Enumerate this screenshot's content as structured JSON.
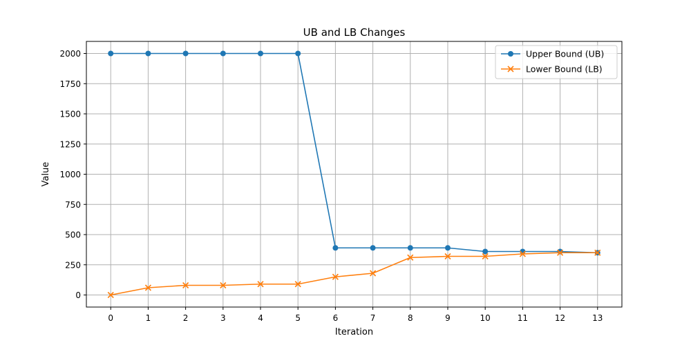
{
  "chart_data": {
    "type": "line",
    "title": "UB and LB Changes",
    "xlabel": "Iteration",
    "ylabel": "Value",
    "x": [
      0,
      1,
      2,
      3,
      4,
      5,
      6,
      7,
      8,
      9,
      10,
      11,
      12,
      13
    ],
    "xlim": [
      -0.65,
      13.65
    ],
    "ylim": [
      -100,
      2100
    ],
    "xticks": [
      0,
      1,
      2,
      3,
      4,
      5,
      6,
      7,
      8,
      9,
      10,
      11,
      12,
      13
    ],
    "yticks": [
      0,
      250,
      500,
      750,
      1000,
      1250,
      1500,
      1750,
      2000
    ],
    "grid": true,
    "legend_position": "top-right",
    "series": [
      {
        "name": "Upper Bound (UB)",
        "color": "#1f77b4",
        "marker": "circle",
        "values": [
          2000,
          2000,
          2000,
          2000,
          2000,
          2000,
          390,
          390,
          390,
          390,
          360,
          360,
          360,
          350
        ]
      },
      {
        "name": "Lower Bound (LB)",
        "color": "#ff7f0e",
        "marker": "x",
        "values": [
          0,
          60,
          80,
          80,
          90,
          90,
          150,
          180,
          310,
          320,
          320,
          340,
          350,
          350
        ]
      }
    ]
  }
}
